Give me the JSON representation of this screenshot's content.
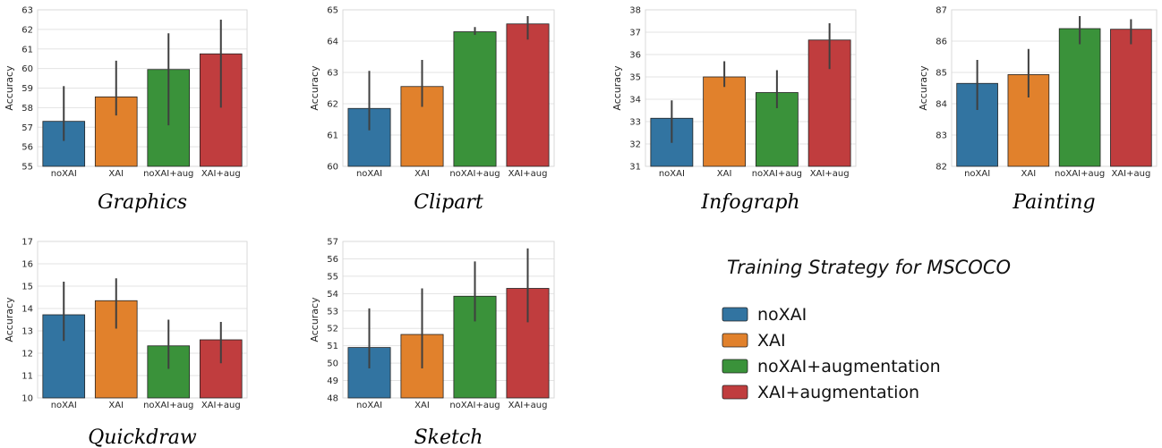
{
  "chart_data": [
    {
      "type": "bar",
      "caption": "Graphics",
      "ylabel": "Accuracy",
      "ylim": [
        55,
        63
      ],
      "categories": [
        "noXAI",
        "XAI",
        "noXAI+aug",
        "XAI+aug"
      ],
      "values": [
        57.3,
        58.55,
        59.95,
        60.75
      ],
      "err_low": [
        56.3,
        57.6,
        57.1,
        58.0
      ],
      "err_high": [
        59.1,
        60.4,
        61.8,
        62.5
      ]
    },
    {
      "type": "bar",
      "caption": "Clipart",
      "ylabel": "Accuracy",
      "ylim": [
        60,
        65
      ],
      "categories": [
        "noXAI",
        "XAI",
        "noXAI+aug",
        "XAI+aug"
      ],
      "values": [
        61.85,
        62.55,
        64.3,
        64.55
      ],
      "err_low": [
        61.15,
        61.9,
        64.2,
        64.05
      ],
      "err_high": [
        63.05,
        63.4,
        64.45,
        64.8
      ]
    },
    {
      "type": "bar",
      "caption": "Infograph",
      "ylabel": "Accuracy",
      "ylim": [
        31,
        38
      ],
      "categories": [
        "noXAI",
        "XAI",
        "noXAI+aug",
        "XAI+aug"
      ],
      "values": [
        33.15,
        35.0,
        34.3,
        36.65
      ],
      "err_low": [
        32.05,
        34.55,
        33.6,
        35.35
      ],
      "err_high": [
        33.95,
        35.7,
        35.3,
        37.4
      ]
    },
    {
      "type": "bar",
      "caption": "Painting",
      "ylabel": "Accuracy",
      "ylim": [
        82,
        87
      ],
      "categories": [
        "noXAI",
        "XAI",
        "noXAI+aug",
        "XAI+aug"
      ],
      "values": [
        84.65,
        84.93,
        86.4,
        86.38
      ],
      "err_low": [
        83.8,
        84.2,
        85.9,
        85.9
      ],
      "err_high": [
        85.4,
        85.75,
        86.8,
        86.7
      ]
    },
    {
      "type": "bar",
      "caption": "Quickdraw",
      "ylabel": "Accuracy",
      "ylim": [
        10,
        17
      ],
      "categories": [
        "noXAI",
        "XAI",
        "noXAI+aug",
        "XAI+aug"
      ],
      "values": [
        13.72,
        14.35,
        12.33,
        12.6
      ],
      "err_low": [
        12.55,
        13.1,
        11.3,
        11.55
      ],
      "err_high": [
        15.2,
        15.35,
        13.5,
        13.4
      ]
    },
    {
      "type": "bar",
      "caption": "Sketch",
      "ylabel": "Accuracy",
      "ylim": [
        48,
        57
      ],
      "categories": [
        "noXAI",
        "XAI",
        "noXAI+aug",
        "XAI+aug"
      ],
      "values": [
        50.9,
        51.65,
        53.85,
        54.3
      ],
      "err_low": [
        49.7,
        49.7,
        52.4,
        52.35
      ],
      "err_high": [
        53.15,
        54.3,
        55.85,
        56.6
      ]
    }
  ],
  "legend": {
    "title": "Training Strategy for MSCOCO",
    "items": [
      {
        "label": "noXAI",
        "color": "#3274a1"
      },
      {
        "label": "XAI",
        "color": "#e1812c"
      },
      {
        "label": "noXAI+augmentation",
        "color": "#3a923a"
      },
      {
        "label": "XAI+augmentation",
        "color": "#c03d3e"
      }
    ]
  }
}
